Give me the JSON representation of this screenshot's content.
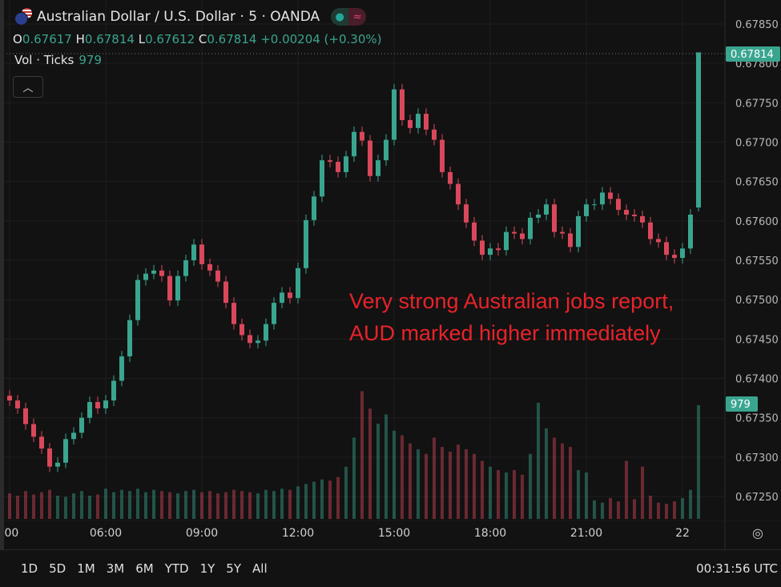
{
  "header": {
    "title": "Australian Dollar / U.S. Dollar · 5 · OANDA",
    "ohlc": {
      "o_label": "O",
      "o": "0.67617",
      "h_label": "H",
      "h": "0.67814",
      "l_label": "L",
      "l": "0.67612",
      "c_label": "C",
      "c": "0.67814",
      "change": "+0.00204 (+0.30%)"
    },
    "volume_label": "Vol · Ticks",
    "volume_value": "979",
    "collapse_icon": "chevron-up-icon"
  },
  "annotation": {
    "line1": "Very strong Australian jobs report,",
    "line2": "AUD marked higher immediately"
  },
  "bottom": {
    "ranges": [
      "1D",
      "5D",
      "1M",
      "3M",
      "6M",
      "YTD",
      "1Y",
      "5Y",
      "All"
    ],
    "clock": "00:31:56 UTC"
  },
  "colors": {
    "up": "#3aa58f",
    "down": "#d9485a",
    "annotation": "#e8232a",
    "background": "#121212"
  },
  "chart_data": {
    "type": "candlestick",
    "symbol": "AUD/USD",
    "interval_shown": "5",
    "x_ticks": [
      ":00",
      "06:00",
      "09:00",
      "12:00",
      "15:00",
      "18:00",
      "21:00",
      "22"
    ],
    "y_ticks": [
      "0.67850",
      "0.67800",
      "0.67750",
      "0.67700",
      "0.67650",
      "0.67600",
      "0.67550",
      "0.67500",
      "0.67450",
      "0.67400",
      "0.67350",
      "0.67300",
      "0.67250"
    ],
    "ylim": [
      0.6722,
      0.6787
    ],
    "last_price_label": "0.67814",
    "last_volume_label": "979",
    "grid": true,
    "x_start": "03:00",
    "x_step_minutes": 15,
    "close": [
      0.67372,
      0.67362,
      0.67342,
      0.67326,
      0.67311,
      0.67288,
      0.67293,
      0.67323,
      0.67331,
      0.6735,
      0.6737,
      0.67362,
      0.67372,
      0.67397,
      0.67428,
      0.67474,
      0.67525,
      0.67533,
      0.67537,
      0.6753,
      0.67499,
      0.6753,
      0.6755,
      0.6757,
      0.67545,
      0.67537,
      0.67523,
      0.67496,
      0.67469,
      0.67455,
      0.67445,
      0.67448,
      0.67469,
      0.67496,
      0.67509,
      0.67502,
      0.6754,
      0.67601,
      0.67631,
      0.67677,
      0.67675,
      0.67662,
      0.67682,
      0.67713,
      0.67702,
      0.67657,
      0.67677,
      0.67703,
      0.67767,
      0.67728,
      0.67718,
      0.67736,
      0.67716,
      0.67703,
      0.67662,
      0.67647,
      0.67621,
      0.67598,
      0.67575,
      0.67557,
      0.67565,
      0.67563,
      0.67586,
      0.67584,
      0.67577,
      0.67604,
      0.67608,
      0.67621,
      0.67586,
      0.67584,
      0.67567,
      0.67606,
      0.67621,
      0.67621,
      0.67636,
      0.67628,
      0.67614,
      0.67608,
      0.67606,
      0.67598,
      0.67577,
      0.67573,
      0.67557,
      0.67553,
      0.67565,
      0.67608,
      0.67814
    ],
    "last_bar": {
      "open": 0.67617,
      "high": 0.67814,
      "low": 0.67612,
      "close": 0.67814
    },
    "volume": [
      220,
      200,
      240,
      210,
      230,
      250,
      200,
      190,
      220,
      240,
      200,
      210,
      260,
      230,
      250,
      240,
      260,
      230,
      250,
      240,
      230,
      220,
      240,
      250,
      230,
      240,
      220,
      230,
      250,
      240,
      230,
      220,
      250,
      240,
      260,
      250,
      280,
      300,
      320,
      340,
      330,
      360,
      450,
      700,
      1100,
      950,
      820,
      900,
      760,
      720,
      650,
      600,
      560,
      700,
      620,
      580,
      640,
      600,
      560,
      500,
      450,
      420,
      400,
      420,
      380,
      560,
      1000,
      780,
      700,
      650,
      620,
      420,
      400,
      160,
      140,
      180,
      150,
      500,
      170,
      450,
      200,
      140,
      130,
      150,
      180,
      250,
      979
    ]
  }
}
